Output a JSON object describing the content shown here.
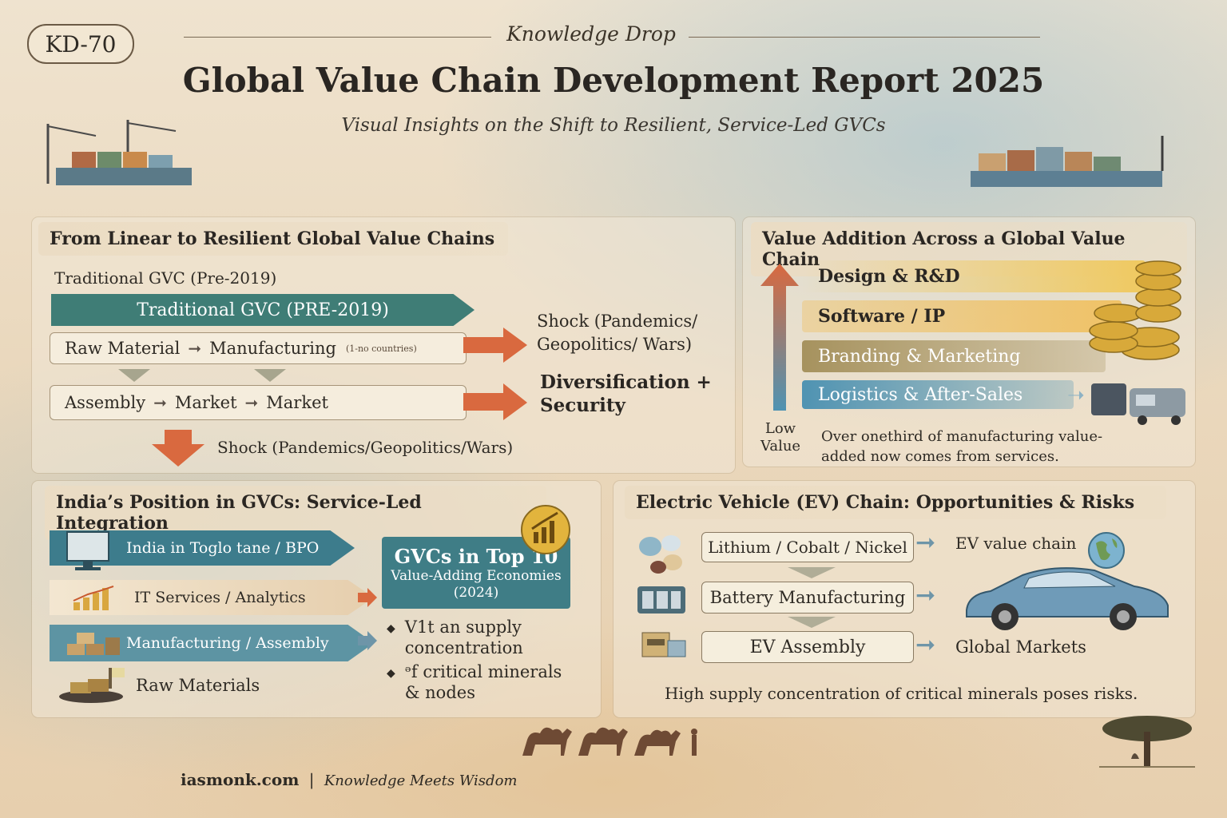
{
  "header": {
    "badge": "KD-70",
    "kicker": "Knowledge Drop",
    "title": "Global Value Chain Development Report 2025",
    "subtitle": "Visual Insights on the Shift to Resilient, Service-Led GVCs"
  },
  "linear_panel": {
    "title": "From Linear to Resilient Global Value Chains",
    "caption": "Traditional GVC (Pre-2019)",
    "banner": "Traditional GVC (PRE-2019)",
    "row1": {
      "a": "Raw Material",
      "b": "Manufacturing",
      "note": "(1-no countries)"
    },
    "row2": {
      "a": "Assembly",
      "b": "Market",
      "c": "Market"
    },
    "shock_right": "Shock (Pandemics/ Geopolitics/ Wars)",
    "diversification": "Diversification + Security",
    "shock_bottom": "Shock (Pandemics/Geopolitics/Wars)"
  },
  "value_panel": {
    "title": "Value Addition Across a Global Value Chain",
    "tiers": [
      {
        "label": "Design & R&D",
        "color": "#f0c85a"
      },
      {
        "label": "Software / IP",
        "color": "#f0c060"
      },
      {
        "label": "Branding & Marketing",
        "color": "#a6925e"
      },
      {
        "label": "Logistics & After-Sales",
        "color": "#4f93b2"
      }
    ],
    "low_value": "Low Value",
    "note": "Over onethird of manufacturing value-added now comes from services."
  },
  "india_panel": {
    "title": "India’s Position in GVCs: Service-Led Integration",
    "layers": [
      "India in Toglo tane / BPO",
      "IT Services / Analytics",
      "Manufacturing / Assembly",
      "Raw Materials"
    ],
    "callout_title": "GVCs in Top 10",
    "callout_sub": "Value-Adding Economies (2024)",
    "bullets": [
      "V1t an supply concentration",
      "ᵊf critical minerals & nodes"
    ]
  },
  "ev_panel": {
    "title": "Electric Vehicle (EV) Chain: Opportunities & Risks",
    "steps": [
      "Lithium / Cobalt / Nickel",
      "Battery Manufacturing",
      "EV Assembly"
    ],
    "ev_value_chain": "EV value chain",
    "global_markets": "Global Markets",
    "note": "High supply concentration of critical minerals poses risks."
  },
  "footer": {
    "site": "iasmonk.com",
    "separator": "|",
    "tagline": "Knowledge Meets Wisdom"
  },
  "colors": {
    "teal": "#3f7d76",
    "blue": "#4f93b2",
    "orange": "#d9693f",
    "gold": "#f0c85a"
  }
}
